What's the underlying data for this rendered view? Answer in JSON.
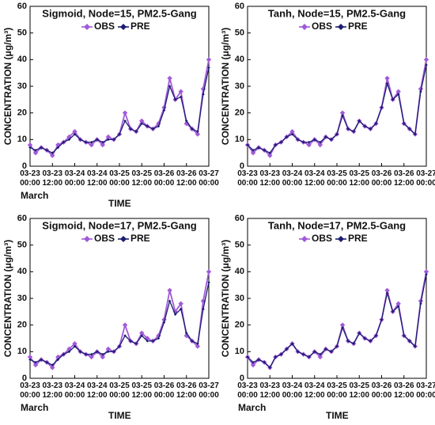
{
  "chart_data": [
    {
      "type": "line",
      "title": "Sigmoid, Node=15, PM2.5-Gang",
      "y_label": "CONCENTRATION (μg/m³)",
      "x_label": "TIME",
      "x_note": "March",
      "xlim": [
        0,
        96
      ],
      "xticks": [
        {
          "value": 0,
          "label": "03-23 00:00"
        },
        {
          "value": 12,
          "label": "03-23 12:00"
        },
        {
          "value": 24,
          "label": "03-24 00:00"
        },
        {
          "value": 36,
          "label": "03-24 12:00"
        },
        {
          "value": 48,
          "label": "03-25 00:00"
        },
        {
          "value": 60,
          "label": "03-25 12:00"
        },
        {
          "value": 72,
          "label": "03-26 00:00"
        },
        {
          "value": 84,
          "label": "03-26 12:00"
        },
        {
          "value": 96,
          "label": "03-27 00:00"
        }
      ],
      "ylim": [
        0,
        60
      ],
      "yticks": [
        0,
        10,
        20,
        30,
        40,
        50,
        60
      ],
      "x": [
        0,
        3,
        6,
        9,
        12,
        15,
        18,
        21,
        24,
        27,
        30,
        33,
        36,
        39,
        42,
        45,
        48,
        51,
        54,
        57,
        60,
        63,
        66,
        69,
        72,
        75,
        78,
        81,
        84,
        87,
        90,
        93,
        96
      ],
      "series": [
        {
          "name": "OBS",
          "color": "#a05ad8",
          "values": [
            8,
            5,
            7,
            6,
            4,
            8,
            9,
            11,
            13,
            10,
            9,
            8,
            10,
            8,
            11,
            10,
            12,
            20,
            14,
            13,
            17,
            15,
            14,
            16,
            22,
            33,
            25,
            28,
            16,
            14,
            12,
            29,
            40
          ]
        },
        {
          "name": "PRE",
          "color": "#1c1c70",
          "values": [
            7,
            6,
            7,
            6,
            5,
            7,
            9,
            10,
            12,
            10,
            9,
            9,
            10,
            9,
            10,
            10,
            12,
            17,
            14,
            13,
            16,
            15,
            14,
            15,
            21,
            30,
            25,
            26,
            17,
            14,
            13,
            27,
            37
          ]
        }
      ]
    },
    {
      "type": "line",
      "title": "Tanh, Node=15, PM2.5-Gang",
      "y_label": "CONCENTRATION (μg/m³)",
      "xlim": [
        0,
        96
      ],
      "xticks": [
        {
          "value": 0,
          "label": "03-23 00:00"
        },
        {
          "value": 12,
          "label": "03-23 12:00"
        },
        {
          "value": 24,
          "label": "03-24 00:00"
        },
        {
          "value": 36,
          "label": "03-24 12:00"
        },
        {
          "value": 48,
          "label": "03-25 00:00"
        },
        {
          "value": 60,
          "label": "03-25 12:00"
        },
        {
          "value": 72,
          "label": "03-26 00:00"
        },
        {
          "value": 84,
          "label": "03-26 12:00"
        },
        {
          "value": 96,
          "label": "03-27 00:00"
        }
      ],
      "ylim": [
        0,
        60
      ],
      "yticks": [
        0,
        10,
        20,
        30,
        40,
        50,
        60
      ],
      "x": [
        0,
        3,
        6,
        9,
        12,
        15,
        18,
        21,
        24,
        27,
        30,
        33,
        36,
        39,
        42,
        45,
        48,
        51,
        54,
        57,
        60,
        63,
        66,
        69,
        72,
        75,
        78,
        81,
        84,
        87,
        90,
        93,
        96
      ],
      "series": [
        {
          "name": "OBS",
          "color": "#a05ad8",
          "values": [
            8,
            5,
            7,
            6,
            4,
            8,
            9,
            11,
            13,
            10,
            9,
            8,
            10,
            8,
            11,
            10,
            12,
            20,
            14,
            13,
            17,
            15,
            14,
            16,
            22,
            33,
            25,
            28,
            16,
            14,
            12,
            29,
            40
          ]
        },
        {
          "name": "PRE",
          "color": "#1c1c70",
          "values": [
            8,
            6,
            7,
            6,
            5,
            8,
            9,
            11,
            12,
            10,
            9,
            9,
            10,
            9,
            11,
            10,
            12,
            19,
            14,
            13,
            17,
            15,
            14,
            16,
            22,
            31,
            25,
            27,
            16,
            14,
            12,
            28,
            38
          ]
        }
      ]
    },
    {
      "type": "line",
      "title": "Sigmoid, Node=17, PM2.5-Gang",
      "y_label": "CONCENTRATION (μg/m³)",
      "x_label": "TIME",
      "x_note": "March",
      "xlim": [
        0,
        96
      ],
      "xticks": [
        {
          "value": 0,
          "label": "03-23 00:00"
        },
        {
          "value": 12,
          "label": "03-23 12:00"
        },
        {
          "value": 24,
          "label": "03-24 00:00"
        },
        {
          "value": 36,
          "label": "03-24 12:00"
        },
        {
          "value": 48,
          "label": "03-25 00:00"
        },
        {
          "value": 60,
          "label": "03-25 12:00"
        },
        {
          "value": 72,
          "label": "03-26 00:00"
        },
        {
          "value": 84,
          "label": "03-26 12:00"
        },
        {
          "value": 96,
          "label": "03-27 00:00"
        }
      ],
      "ylim": [
        0,
        60
      ],
      "yticks": [
        0,
        10,
        20,
        30,
        40,
        50,
        60
      ],
      "x": [
        0,
        3,
        6,
        9,
        12,
        15,
        18,
        21,
        24,
        27,
        30,
        33,
        36,
        39,
        42,
        45,
        48,
        51,
        54,
        57,
        60,
        63,
        66,
        69,
        72,
        75,
        78,
        81,
        84,
        87,
        90,
        93,
        96
      ],
      "series": [
        {
          "name": "OBS",
          "color": "#a05ad8",
          "values": [
            8,
            5,
            7,
            6,
            4,
            8,
            9,
            11,
            13,
            10,
            9,
            8,
            10,
            8,
            11,
            10,
            12,
            20,
            14,
            13,
            17,
            15,
            14,
            16,
            22,
            33,
            25,
            28,
            16,
            14,
            12,
            29,
            40
          ]
        },
        {
          "name": "PRE",
          "color": "#1c1c70",
          "values": [
            7,
            6,
            7,
            6,
            5,
            7,
            9,
            10,
            12,
            10,
            9,
            9,
            10,
            9,
            10,
            10,
            12,
            16,
            14,
            13,
            16,
            14,
            14,
            15,
            21,
            29,
            24,
            26,
            17,
            14,
            13,
            26,
            36
          ]
        }
      ]
    },
    {
      "type": "line",
      "title": "Tanh, Node=17, PM2.5-Gang",
      "y_label": "CONCENTRATION (μg/m³)",
      "x_label": "TIME",
      "x_note": "March",
      "xlim": [
        0,
        96
      ],
      "xticks": [
        {
          "value": 0,
          "label": "03-23 00:00"
        },
        {
          "value": 12,
          "label": "03-23 12:00"
        },
        {
          "value": 24,
          "label": "03-24 00:00"
        },
        {
          "value": 36,
          "label": "03-24 12:00"
        },
        {
          "value": 48,
          "label": "03-25 00:00"
        },
        {
          "value": 60,
          "label": "03-25 12:00"
        },
        {
          "value": 72,
          "label": "03-26 00:00"
        },
        {
          "value": 84,
          "label": "03-26 12:00"
        },
        {
          "value": 96,
          "label": "03-27 00:00"
        }
      ],
      "ylim": [
        0,
        60
      ],
      "yticks": [
        0,
        10,
        20,
        30,
        40,
        50,
        60
      ],
      "x": [
        0,
        3,
        6,
        9,
        12,
        15,
        18,
        21,
        24,
        27,
        30,
        33,
        36,
        39,
        42,
        45,
        48,
        51,
        54,
        57,
        60,
        63,
        66,
        69,
        72,
        75,
        78,
        81,
        84,
        87,
        90,
        93,
        96
      ],
      "series": [
        {
          "name": "OBS",
          "color": "#a05ad8",
          "values": [
            8,
            5,
            7,
            6,
            4,
            8,
            9,
            11,
            13,
            10,
            9,
            8,
            10,
            8,
            11,
            10,
            12,
            20,
            14,
            13,
            17,
            15,
            14,
            16,
            22,
            33,
            25,
            28,
            16,
            14,
            12,
            29,
            40
          ]
        },
        {
          "name": "PRE",
          "color": "#1c1c70",
          "values": [
            8,
            6,
            7,
            6,
            4,
            8,
            9,
            11,
            13,
            10,
            9,
            8,
            10,
            9,
            11,
            10,
            12,
            19,
            14,
            13,
            17,
            15,
            14,
            16,
            22,
            32,
            25,
            27,
            16,
            14,
            12,
            28,
            39
          ]
        }
      ]
    }
  ]
}
